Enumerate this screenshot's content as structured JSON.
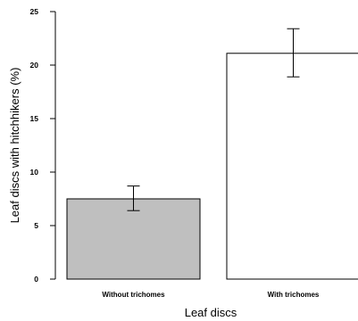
{
  "chart_data": {
    "type": "bar",
    "categories": [
      "Without trichomes",
      "With trichomes"
    ],
    "values": [
      7.5,
      21.1
    ],
    "error_low": [
      6.4,
      18.9
    ],
    "error_high": [
      8.7,
      23.4
    ],
    "bar_colors": [
      "#bfbfbf",
      "#ffffff"
    ],
    "xlabel": "Leaf discs",
    "ylabel": "Leaf discs with hitchhikers (%)",
    "ylim": [
      0,
      25
    ],
    "yticks": [
      0,
      5,
      10,
      15,
      20,
      25
    ],
    "grid": false
  }
}
